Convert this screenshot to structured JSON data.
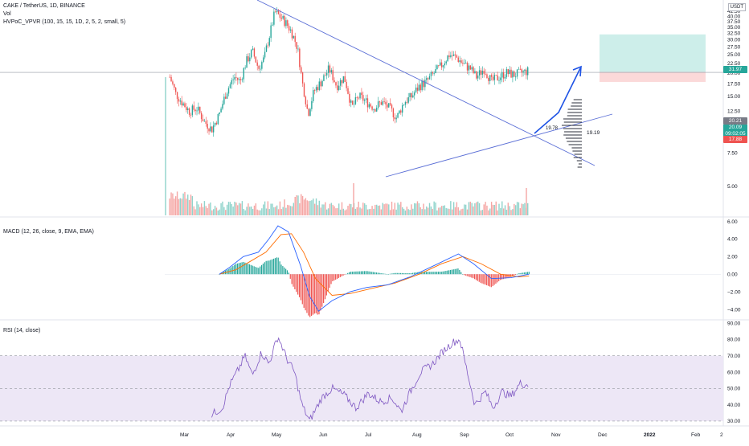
{
  "header": {
    "symbol_line": "CAKE / TetherUS, 1D, BINANCE",
    "vol_label": "Vol",
    "hvpoc_label": "HVPoC_VPVR (100, 15, 15, 1D, 2, 5, 2, small, 5)",
    "currency_badge": "USDT"
  },
  "macd_panel": {
    "legend": "MACD (12, 26, close, 9, EMA, EMA)"
  },
  "rsi_panel": {
    "legend": "RSI (14, close)"
  },
  "annotations": {
    "poc_left": "19.78",
    "poc_right": "19.19"
  },
  "price_tags": {
    "target": "31.97",
    "current": "20.09",
    "current_sub": "09:02:05",
    "entry": "20.21",
    "stop": "17.88"
  },
  "colors": {
    "up": "#26a69a",
    "down": "#ef5350",
    "trendline": "#5b6fd6",
    "macd_line": "#2962ff",
    "signal_line": "#ff6d00",
    "rsi_line": "#7e57c2",
    "rsi_band": "#ede7f6",
    "target_zone": "#cdeeea",
    "stop_zone": "#fbd9d9",
    "arrow": "#1e53e5"
  },
  "chart_data": [
    {
      "type": "candlestick",
      "name": "price",
      "title": "CAKE / TetherUS, 1D, BINANCE",
      "y_ticks": [
        5.0,
        7.5,
        10.0,
        12.5,
        15.0,
        17.5,
        20.0,
        22.5,
        25.0,
        27.5,
        30.0,
        32.5,
        35.0,
        37.5,
        40.0,
        42.5
      ],
      "y_tick_labels": [
        "5.00",
        "7.50",
        "10.00",
        "12.50",
        "15.00",
        "17.50",
        "20.00",
        "22.50",
        "25.00",
        "27.50",
        "30.00",
        "32.50",
        "35.00",
        "37.50",
        "40.00",
        "42.50"
      ],
      "ylim": [
        3.5,
        45.0
      ],
      "x_ticks": [
        "Mar",
        "Apr",
        "May",
        "Jun",
        "Jul",
        "Aug",
        "Sep",
        "Oct",
        "Nov",
        "Dec",
        "2022",
        "Feb",
        "2"
      ],
      "close_path": [
        {
          "date": "2021-02-20",
          "close": 19.0
        },
        {
          "date": "2021-02-24",
          "close": 15.5
        },
        {
          "date": "2021-02-28",
          "close": 14.0
        },
        {
          "date": "2021-03-05",
          "close": 12.5
        },
        {
          "date": "2021-03-10",
          "close": 13.0
        },
        {
          "date": "2021-03-15",
          "close": 11.0
        },
        {
          "date": "2021-03-20",
          "close": 10.0
        },
        {
          "date": "2021-03-25",
          "close": 12.0
        },
        {
          "date": "2021-03-30",
          "close": 16.0
        },
        {
          "date": "2021-04-04",
          "close": 19.0
        },
        {
          "date": "2021-04-08",
          "close": 18.0
        },
        {
          "date": "2021-04-12",
          "close": 23.0
        },
        {
          "date": "2021-04-16",
          "close": 26.0
        },
        {
          "date": "2021-04-20",
          "close": 21.0
        },
        {
          "date": "2021-04-24",
          "close": 24.0
        },
        {
          "date": "2021-04-28",
          "close": 33.0
        },
        {
          "date": "2021-05-01",
          "close": 42.0
        },
        {
          "date": "2021-05-04",
          "close": 40.0
        },
        {
          "date": "2021-05-08",
          "close": 37.0
        },
        {
          "date": "2021-05-12",
          "close": 33.0
        },
        {
          "date": "2021-05-16",
          "close": 27.0
        },
        {
          "date": "2021-05-19",
          "close": 18.0
        },
        {
          "date": "2021-05-23",
          "close": 12.0
        },
        {
          "date": "2021-05-27",
          "close": 16.0
        },
        {
          "date": "2021-06-01",
          "close": 18.0
        },
        {
          "date": "2021-06-06",
          "close": 21.0
        },
        {
          "date": "2021-06-11",
          "close": 17.0
        },
        {
          "date": "2021-06-16",
          "close": 19.0
        },
        {
          "date": "2021-06-21",
          "close": 13.0
        },
        {
          "date": "2021-06-26",
          "close": 15.0
        },
        {
          "date": "2021-07-01",
          "close": 14.0
        },
        {
          "date": "2021-07-06",
          "close": 13.0
        },
        {
          "date": "2021-07-11",
          "close": 14.0
        },
        {
          "date": "2021-07-16",
          "close": 13.0
        },
        {
          "date": "2021-07-21",
          "close": 11.5
        },
        {
          "date": "2021-07-26",
          "close": 14.0
        },
        {
          "date": "2021-07-31",
          "close": 15.0
        },
        {
          "date": "2021-08-05",
          "close": 17.0
        },
        {
          "date": "2021-08-10",
          "close": 18.0
        },
        {
          "date": "2021-08-15",
          "close": 20.0
        },
        {
          "date": "2021-08-20",
          "close": 22.0
        },
        {
          "date": "2021-08-25",
          "close": 25.0
        },
        {
          "date": "2021-08-30",
          "close": 24.0
        },
        {
          "date": "2021-09-04",
          "close": 22.0
        },
        {
          "date": "2021-09-08",
          "close": 21.0
        },
        {
          "date": "2021-09-12",
          "close": 19.0
        },
        {
          "date": "2021-09-17",
          "close": 21.0
        },
        {
          "date": "2021-09-22",
          "close": 18.0
        },
        {
          "date": "2021-09-27",
          "close": 19.0
        },
        {
          "date": "2021-10-02",
          "close": 20.0
        },
        {
          "date": "2021-10-07",
          "close": 19.5
        },
        {
          "date": "2021-10-12",
          "close": 20.0
        },
        {
          "date": "2021-10-17",
          "close": 20.5
        }
      ],
      "current_price": 20.09,
      "target_price": 31.97,
      "stop_price": 17.88
    },
    {
      "type": "line",
      "name": "MACD",
      "title": "MACD (12, 26, close, 9, EMA, EMA)",
      "y_ticks": [
        -4.0,
        -2.0,
        0.0,
        2.0,
        4.0,
        6.0
      ],
      "y_tick_labels": [
        "−4.00",
        "−2.00",
        "0.00",
        "2.00",
        "4.00",
        "6.00"
      ],
      "ylim": [
        -5.0,
        6.5
      ],
      "series": [
        {
          "values_path": [
            {
              "date": "2021-03-25",
              "macd": 0.0
            },
            {
              "date": "2021-04-01",
              "macd": 0.8
            },
            {
              "date": "2021-04-10",
              "macd": 2.0
            },
            {
              "date": "2021-04-20",
              "macd": 2.5
            },
            {
              "date": "2021-04-27",
              "macd": 4.0
            },
            {
              "date": "2021-05-03",
              "macd": 5.5
            },
            {
              "date": "2021-05-10",
              "macd": 4.8
            },
            {
              "date": "2021-05-18",
              "macd": 1.0
            },
            {
              "date": "2021-05-24",
              "macd": -2.5
            },
            {
              "date": "2021-05-30",
              "macd": -4.2
            },
            {
              "date": "2021-06-08",
              "macd": -3.0
            },
            {
              "date": "2021-06-20",
              "macd": -2.0
            },
            {
              "date": "2021-07-01",
              "macd": -1.5
            },
            {
              "date": "2021-07-15",
              "macd": -1.2
            },
            {
              "date": "2021-07-30",
              "macd": -0.3
            },
            {
              "date": "2021-08-15",
              "macd": 1.0
            },
            {
              "date": "2021-08-31",
              "macd": 2.3
            },
            {
              "date": "2021-09-10",
              "macd": 1.2
            },
            {
              "date": "2021-09-22",
              "macd": -0.5
            },
            {
              "date": "2021-10-05",
              "macd": -0.4
            },
            {
              "date": "2021-10-17",
              "macd": 0.0
            }
          ]
        },
        {
          "values_path": [
            {
              "date": "2021-03-25",
              "signal": 0.0
            },
            {
              "date": "2021-04-05",
              "signal": 0.5
            },
            {
              "date": "2021-04-15",
              "signal": 1.5
            },
            {
              "date": "2021-04-25",
              "signal": 2.5
            },
            {
              "date": "2021-05-05",
              "signal": 4.5
            },
            {
              "date": "2021-05-12",
              "signal": 4.6
            },
            {
              "date": "2021-05-20",
              "signal": 2.5
            },
            {
              "date": "2021-05-28",
              "signal": -0.5
            },
            {
              "date": "2021-06-08",
              "signal": -2.4
            },
            {
              "date": "2021-06-20",
              "signal": -2.2
            },
            {
              "date": "2021-07-05",
              "signal": -1.6
            },
            {
              "date": "2021-07-20",
              "signal": -1.0
            },
            {
              "date": "2021-08-05",
              "signal": 0.0
            },
            {
              "date": "2021-08-20",
              "signal": 1.2
            },
            {
              "date": "2021-09-03",
              "signal": 2.0
            },
            {
              "date": "2021-09-15",
              "signal": 1.2
            },
            {
              "date": "2021-09-28",
              "signal": 0.0
            },
            {
              "date": "2021-10-10",
              "signal": -0.3
            },
            {
              "date": "2021-10-17",
              "signal": -0.2
            }
          ]
        }
      ]
    },
    {
      "type": "line",
      "name": "RSI",
      "title": "RSI (14, close)",
      "y_ticks": [
        30.0,
        40.0,
        50.0,
        60.0,
        70.0,
        80.0,
        90.0
      ],
      "y_tick_labels": [
        "30.00",
        "40.00",
        "50.00",
        "60.00",
        "70.00",
        "80.00",
        "90.00"
      ],
      "ylim": [
        28.0,
        91.0
      ],
      "bands": [
        30,
        50,
        70
      ],
      "series": [
        {
          "values_path": [
            {
              "date": "2021-03-20",
              "rsi": 34
            },
            {
              "date": "2021-03-27",
              "rsi": 38
            },
            {
              "date": "2021-04-01",
              "rsi": 52
            },
            {
              "date": "2021-04-07",
              "rsi": 62
            },
            {
              "date": "2021-04-11",
              "rsi": 70
            },
            {
              "date": "2021-04-16",
              "rsi": 58
            },
            {
              "date": "2021-04-22",
              "rsi": 72
            },
            {
              "date": "2021-04-27",
              "rsi": 65
            },
            {
              "date": "2021-05-03",
              "rsi": 82
            },
            {
              "date": "2021-05-09",
              "rsi": 68
            },
            {
              "date": "2021-05-14",
              "rsi": 60
            },
            {
              "date": "2021-05-19",
              "rsi": 40
            },
            {
              "date": "2021-05-24",
              "rsi": 30
            },
            {
              "date": "2021-06-01",
              "rsi": 44
            },
            {
              "date": "2021-06-08",
              "rsi": 50
            },
            {
              "date": "2021-06-16",
              "rsi": 46
            },
            {
              "date": "2021-06-24",
              "rsi": 38
            },
            {
              "date": "2021-07-02",
              "rsi": 47
            },
            {
              "date": "2021-07-10",
              "rsi": 42
            },
            {
              "date": "2021-07-18",
              "rsi": 44
            },
            {
              "date": "2021-07-24",
              "rsi": 36
            },
            {
              "date": "2021-07-30",
              "rsi": 48
            },
            {
              "date": "2021-08-06",
              "rsi": 60
            },
            {
              "date": "2021-08-14",
              "rsi": 65
            },
            {
              "date": "2021-08-20",
              "rsi": 72
            },
            {
              "date": "2021-08-27",
              "rsi": 78
            },
            {
              "date": "2021-09-01",
              "rsi": 80
            },
            {
              "date": "2021-09-06",
              "rsi": 60
            },
            {
              "date": "2021-09-11",
              "rsi": 40
            },
            {
              "date": "2021-09-18",
              "rsi": 48
            },
            {
              "date": "2021-09-23",
              "rsi": 38
            },
            {
              "date": "2021-09-29",
              "rsi": 48
            },
            {
              "date": "2021-10-05",
              "rsi": 45
            },
            {
              "date": "2021-10-11",
              "rsi": 53
            },
            {
              "date": "2021-10-17",
              "rsi": 52
            }
          ]
        }
      ]
    }
  ]
}
